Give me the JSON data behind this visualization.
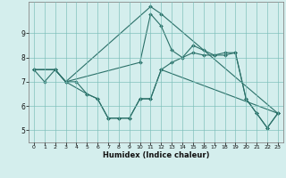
{
  "title": "",
  "xlabel": "Humidex (Indice chaleur)",
  "ylabel": "",
  "bg_color": "#d4eeed",
  "line_color": "#2a7068",
  "grid_color": "#7bbdb8",
  "xlim": [
    -0.5,
    23.5
  ],
  "ylim": [
    4.5,
    10.3
  ],
  "yticks": [
    5,
    6,
    7,
    8,
    9
  ],
  "xticks": [
    0,
    1,
    2,
    3,
    4,
    5,
    6,
    7,
    8,
    9,
    10,
    11,
    12,
    13,
    14,
    15,
    16,
    17,
    18,
    19,
    20,
    21,
    22,
    23
  ],
  "lines": [
    {
      "x": [
        0,
        1,
        2,
        3,
        4,
        5,
        6,
        7,
        8,
        9,
        10,
        11,
        12,
        13,
        14,
        15,
        16,
        17,
        18,
        19,
        20,
        21,
        22,
        23
      ],
      "y": [
        7.5,
        7.0,
        7.5,
        7.0,
        7.0,
        6.5,
        6.3,
        5.5,
        5.5,
        5.5,
        6.3,
        6.3,
        7.5,
        7.8,
        8.0,
        8.2,
        8.1,
        8.1,
        8.2,
        8.2,
        6.3,
        5.7,
        5.1,
        5.7
      ]
    },
    {
      "x": [
        0,
        2,
        3,
        10,
        11,
        12,
        13,
        14,
        15,
        16,
        17,
        18,
        19,
        20,
        21,
        22,
        23
      ],
      "y": [
        7.5,
        7.5,
        7.0,
        7.8,
        9.8,
        9.3,
        8.3,
        8.0,
        8.5,
        8.3,
        8.1,
        8.1,
        8.2,
        6.3,
        5.7,
        5.1,
        5.7
      ]
    },
    {
      "x": [
        0,
        2,
        3,
        11,
        12,
        23
      ],
      "y": [
        7.5,
        7.5,
        7.0,
        10.1,
        9.8,
        5.7
      ]
    },
    {
      "x": [
        0,
        2,
        3,
        5,
        6,
        7,
        8,
        9,
        10,
        11,
        12,
        23
      ],
      "y": [
        7.5,
        7.5,
        7.0,
        6.5,
        6.3,
        5.5,
        5.5,
        5.5,
        6.3,
        6.3,
        7.5,
        5.7
      ]
    }
  ]
}
